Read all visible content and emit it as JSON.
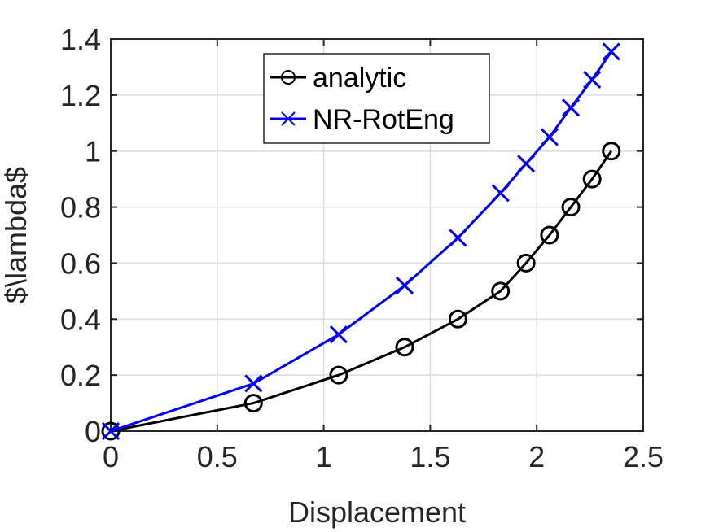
{
  "chart_data": {
    "type": "line",
    "title": "",
    "xlabel": "Displacement",
    "ylabel": "$\\lambda$",
    "xlim": [
      0,
      2.5
    ],
    "ylim": [
      0,
      1.4
    ],
    "xticks": [
      0,
      0.5,
      1,
      1.5,
      2,
      2.5
    ],
    "yticks": [
      0,
      0.2,
      0.4,
      0.6,
      0.8,
      1,
      1.2,
      1.4
    ],
    "xtick_labels": [
      "0",
      "0.5",
      "1",
      "1.5",
      "2",
      "2.5"
    ],
    "ytick_labels": [
      "0",
      "0.2",
      "0.4",
      "0.6",
      "0.8",
      "1",
      "1.2",
      "1.4"
    ],
    "grid": true,
    "legend_position": "top-center",
    "series": [
      {
        "name": "analytic",
        "color": "#000000",
        "marker": "circle",
        "x": [
          0,
          0.67,
          1.07,
          1.38,
          1.63,
          1.83,
          1.95,
          2.06,
          2.16,
          2.26,
          2.35
        ],
        "y": [
          0,
          0.1,
          0.2,
          0.3,
          0.4,
          0.5,
          0.6,
          0.7,
          0.8,
          0.9,
          1.0
        ]
      },
      {
        "name": "NR-RotEng",
        "color": "#0000ff",
        "marker": "x",
        "x": [
          0,
          0.67,
          1.07,
          1.38,
          1.63,
          1.83,
          1.95,
          2.06,
          2.16,
          2.26,
          2.35
        ],
        "y": [
          0,
          0.17,
          0.345,
          0.52,
          0.69,
          0.85,
          0.955,
          1.05,
          1.155,
          1.255,
          1.355
        ]
      }
    ]
  }
}
